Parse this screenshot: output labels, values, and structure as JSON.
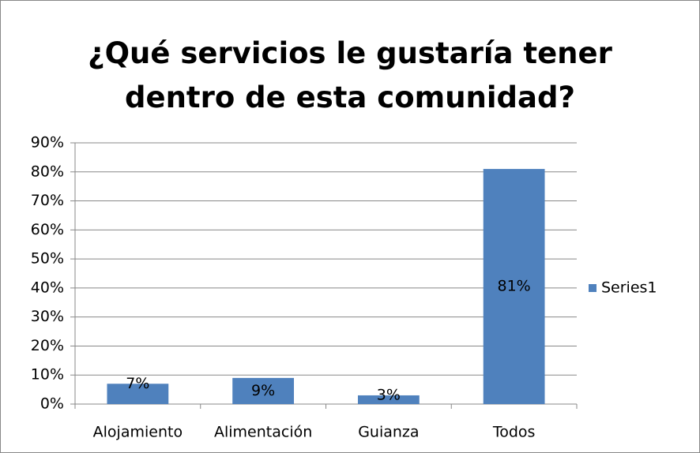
{
  "chart_data": {
    "type": "bar",
    "title": "¿Qué servicios le gustaría tener dentro de esta comunidad?",
    "categories": [
      "Alojamiento",
      "Alimentación",
      "Guianza",
      "Todos"
    ],
    "series": [
      {
        "name": "Series1",
        "color": "#4f81bd",
        "values": [
          7,
          9,
          3,
          81
        ],
        "value_labels": [
          "7%",
          "9%",
          "3%",
          "81%"
        ]
      }
    ],
    "ylim": [
      0,
      90
    ],
    "yticks": [
      {
        "value": 0,
        "label": "0%"
      },
      {
        "value": 10,
        "label": "10%"
      },
      {
        "value": 20,
        "label": "20%"
      },
      {
        "value": 30,
        "label": "30%"
      },
      {
        "value": 40,
        "label": "40%"
      },
      {
        "value": 50,
        "label": "50%"
      },
      {
        "value": 60,
        "label": "60%"
      },
      {
        "value": 70,
        "label": "70%"
      },
      {
        "value": 80,
        "label": "80%"
      },
      {
        "value": 90,
        "label": "90%"
      }
    ],
    "grid": true,
    "legend": "right"
  }
}
